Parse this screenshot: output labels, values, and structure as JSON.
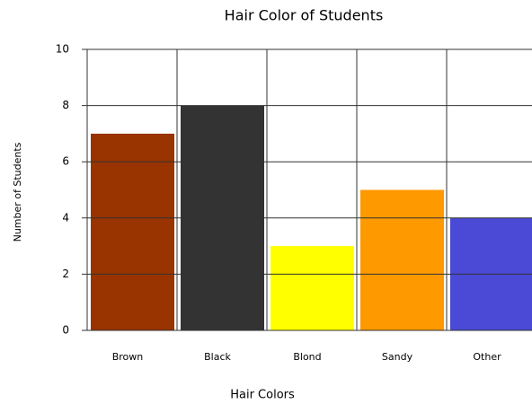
{
  "chart_data": {
    "type": "bar",
    "title": "Hair Color of Students",
    "x_label": "Hair Colors",
    "y_label": "Number of Students",
    "categories": [
      "Brown",
      "Black",
      "Blond",
      "Sandy",
      "Other"
    ],
    "values": [
      7,
      8,
      3,
      5,
      4
    ],
    "colors": [
      "#993300",
      "#333333",
      "#ffff00",
      "#ff9900",
      "#4a4ad6"
    ],
    "ylim": [
      0,
      10
    ],
    "yticks": [
      0,
      2,
      4,
      6,
      8,
      10
    ],
    "grid": true
  }
}
